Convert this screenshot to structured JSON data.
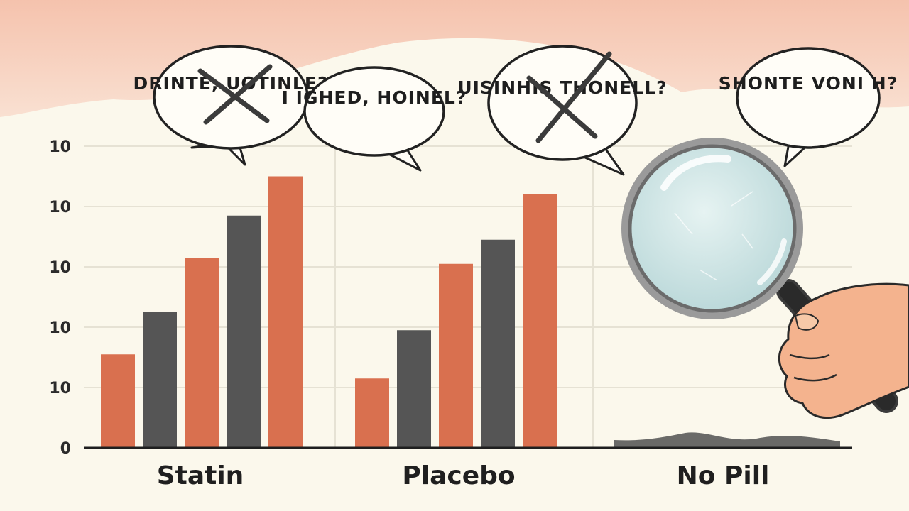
{
  "colors": {
    "background": "#fbf8ec",
    "header_wash": "#f6c6b2",
    "bar_orange": "#d9704f",
    "bar_gray": "#555555",
    "axis": "#1f1f1f",
    "grid": "#e6e2d4",
    "skin": "#f4b38e",
    "lens": "#cfe6e6"
  },
  "icons": [
    "magnifying-glass-icon",
    "hand-icon",
    "cross-out-icon"
  ],
  "chart_data": {
    "type": "bar",
    "title": "",
    "xlabel": "",
    "ylabel": "",
    "y_tick_labels": [
      "0",
      "10",
      "10",
      "10",
      "10",
      "10"
    ],
    "ylim": [
      0,
      5
    ],
    "grid": true,
    "legend": "none",
    "categories": [
      "Statin",
      "Placebo",
      "No Pill"
    ],
    "bars": [
      [
        {
          "value": 1.55,
          "color": "orange"
        },
        {
          "value": 2.25,
          "color": "gray"
        },
        {
          "value": 3.15,
          "color": "orange"
        },
        {
          "value": 3.85,
          "color": "gray"
        },
        {
          "value": 4.5,
          "color": "orange"
        }
      ],
      [
        {
          "value": 1.15,
          "color": "orange"
        },
        {
          "value": 1.95,
          "color": "gray"
        },
        {
          "value": 3.05,
          "color": "orange"
        },
        {
          "value": 3.45,
          "color": "gray"
        },
        {
          "value": 4.2,
          "color": "orange"
        }
      ],
      []
    ],
    "no_pill_band": 0.2,
    "annotations": [
      {
        "text": "DRINTE, UOTINLE?",
        "crossed": true
      },
      {
        "text": "I IGHED, HOINEL?",
        "crossed": false
      },
      {
        "text": "UISINHIS THONELL?",
        "crossed": true
      },
      {
        "text": "SHONTE VONI H?",
        "crossed": false
      }
    ]
  }
}
